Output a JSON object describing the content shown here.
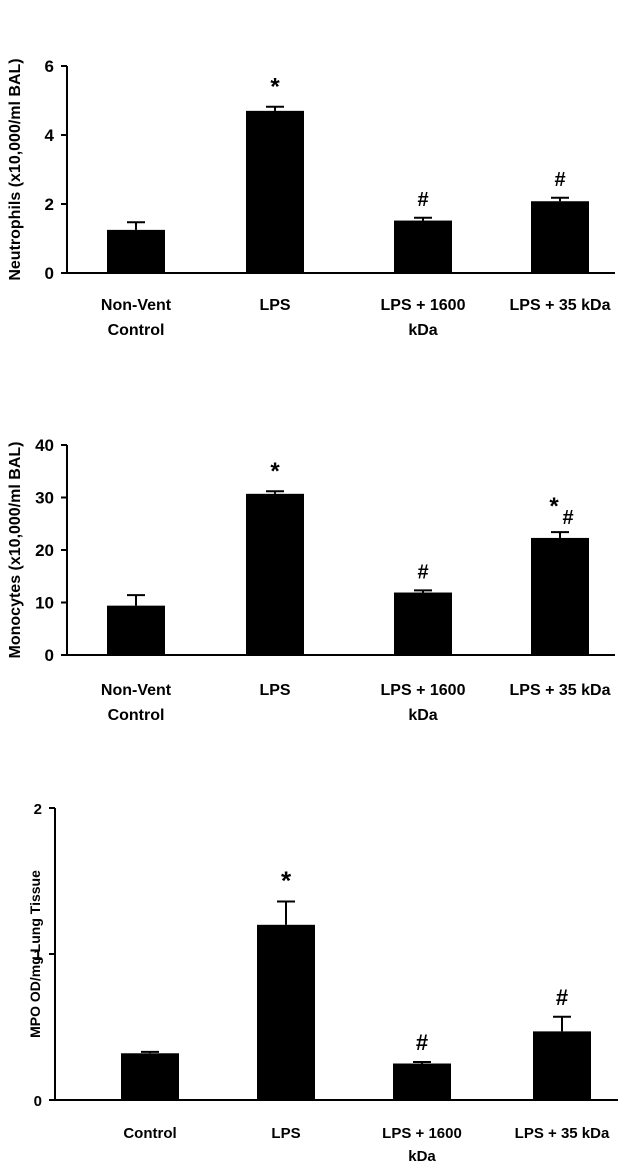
{
  "chart_data": [
    {
      "type": "bar",
      "ylabel": "Neutrophils (x10,000/ml BAL)",
      "ylim": [
        0,
        6
      ],
      "yticks": [
        0,
        2,
        4,
        6
      ],
      "categories": [
        [
          "Non-Vent",
          "Control"
        ],
        [
          "LPS"
        ],
        [
          "LPS + 1600",
          "kDa"
        ],
        [
          "LPS + 35 kDa"
        ]
      ],
      "values": [
        1.25,
        4.7,
        1.52,
        2.08
      ],
      "errors": [
        0.22,
        0.12,
        0.08,
        0.1
      ],
      "markers": [
        "",
        "*",
        "#",
        "#"
      ],
      "bar_color": "#000000"
    },
    {
      "type": "bar",
      "ylabel": "Monocytes (x10,000/ml BAL)",
      "ylim": [
        0,
        40
      ],
      "yticks": [
        0,
        10,
        20,
        30,
        40
      ],
      "categories": [
        [
          "Non-Vent",
          "Control"
        ],
        [
          "LPS"
        ],
        [
          "LPS + 1600",
          "kDa"
        ],
        [
          "LPS + 35 kDa"
        ]
      ],
      "values": [
        9.4,
        30.7,
        11.9,
        22.3
      ],
      "errors": [
        2.0,
        0.5,
        0.4,
        1.1
      ],
      "markers": [
        "",
        "*",
        "#",
        "*#"
      ],
      "bar_color": "#000000"
    },
    {
      "type": "bar",
      "ylabel": "MPO OD/mg Lung Tissue",
      "ylim": [
        0,
        2
      ],
      "yticks": [
        0,
        1,
        2
      ],
      "categories": [
        [
          "Control"
        ],
        [
          "LPS"
        ],
        [
          "LPS + 1600",
          "kDa"
        ],
        [
          "LPS + 35 kDa"
        ]
      ],
      "values": [
        0.32,
        1.2,
        0.25,
        0.47
      ],
      "errors": [
        0.01,
        0.16,
        0.01,
        0.1
      ],
      "markers": [
        "",
        "*",
        "#",
        "#"
      ],
      "bar_color": "#000000"
    }
  ]
}
